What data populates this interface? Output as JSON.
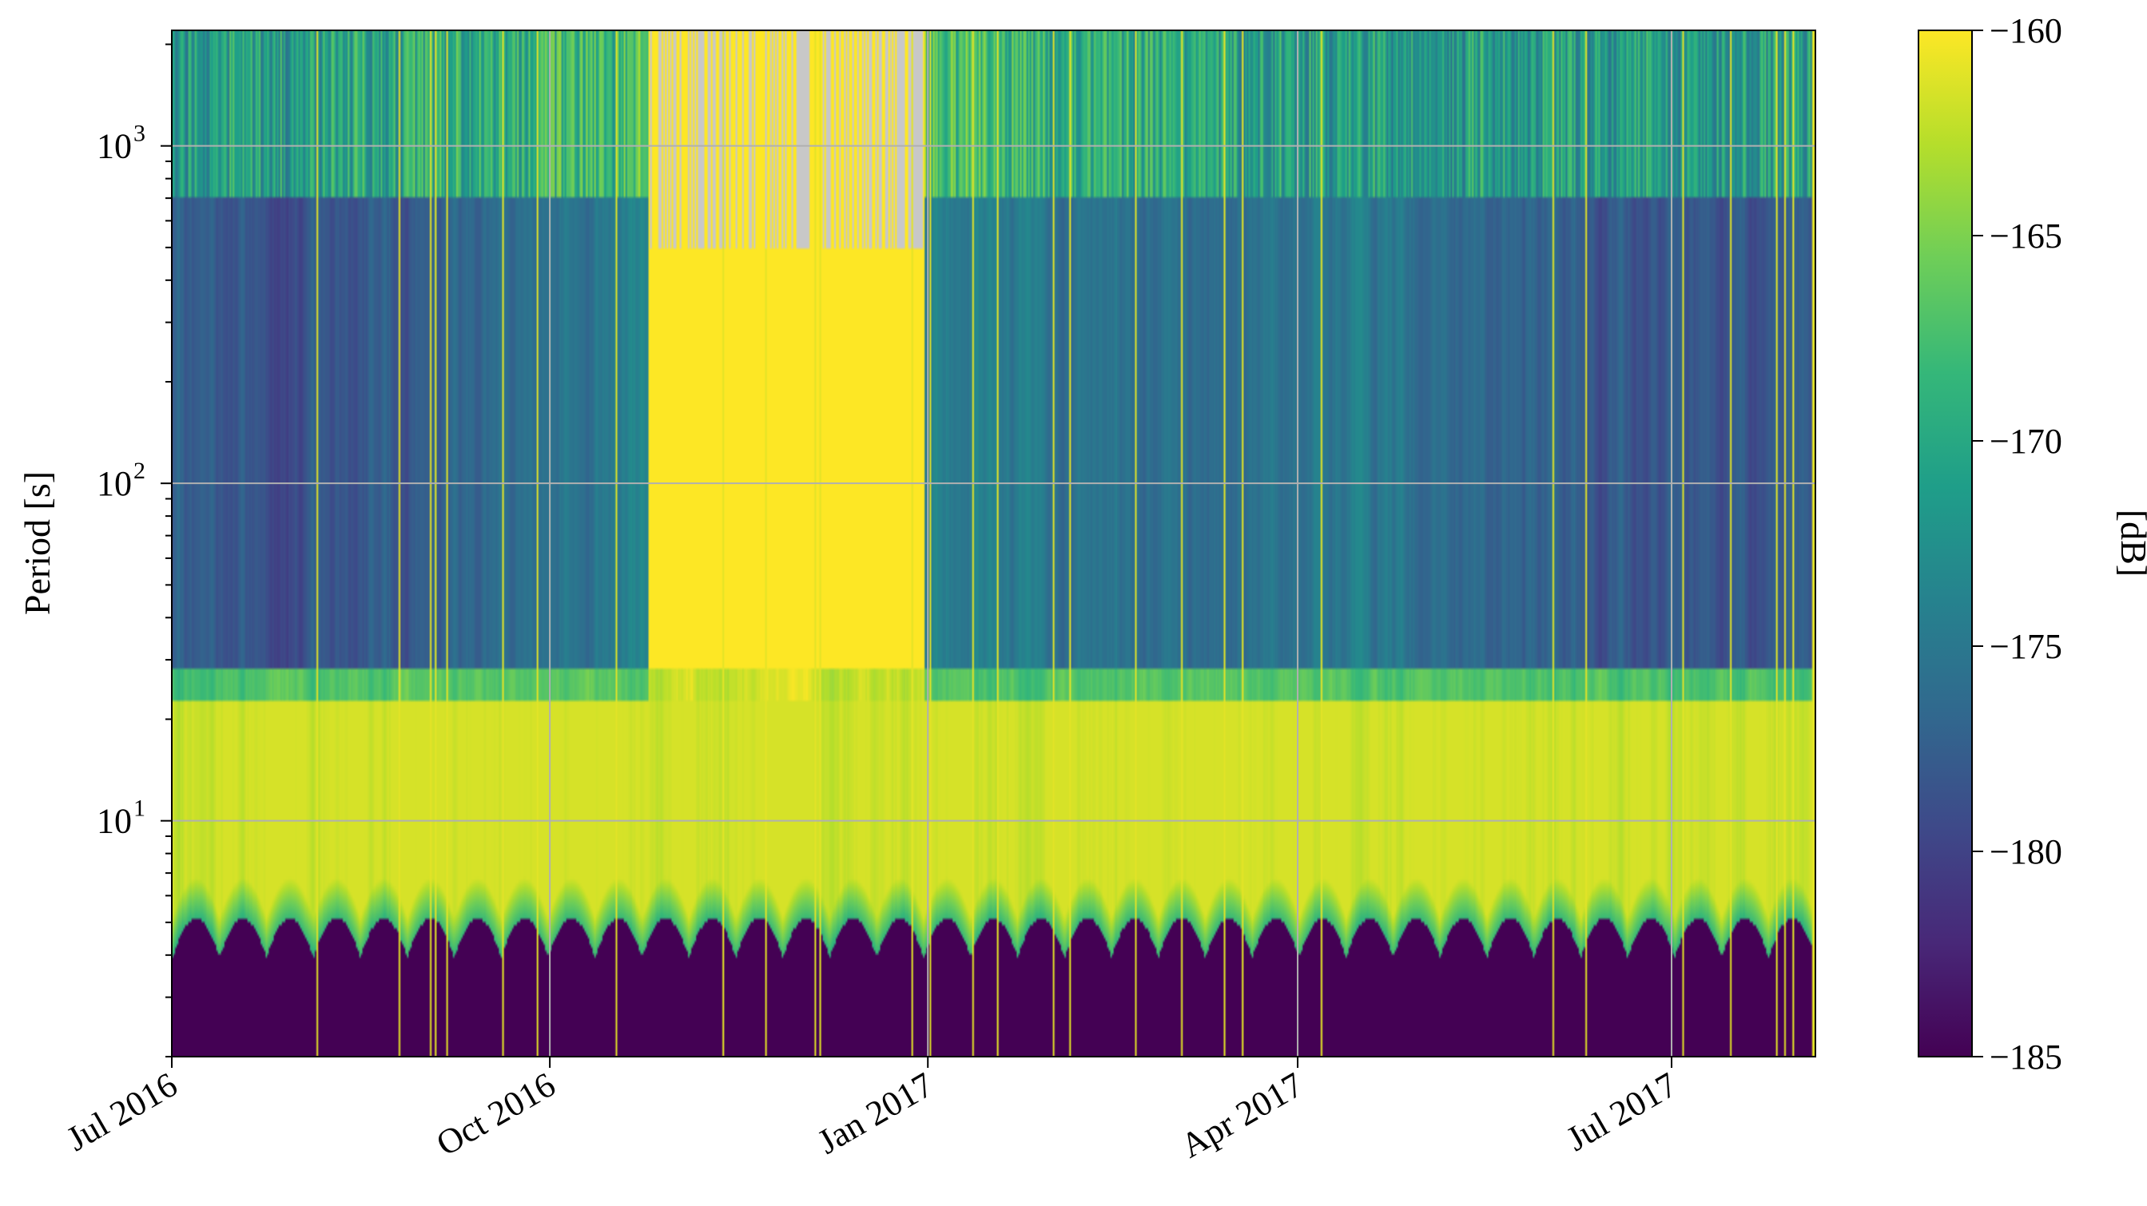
{
  "chart_data": {
    "type": "heatmap",
    "title": "",
    "xlabel": "",
    "ylabel": "Period [s]",
    "x_axis": {
      "kind": "date",
      "range": [
        "2016-07-01",
        "2017-08-05"
      ],
      "ticks": [
        {
          "date": "2016-07-01",
          "label": "Jul 2016"
        },
        {
          "date": "2016-10-01",
          "label": "Oct 2016"
        },
        {
          "date": "2017-01-01",
          "label": "Jan 2017"
        },
        {
          "date": "2017-04-01",
          "label": "Apr 2017"
        },
        {
          "date": "2017-07-01",
          "label": "Jul 2017"
        }
      ]
    },
    "y_axis": {
      "scale": "log",
      "range": [
        2,
        2200
      ],
      "ticks": [
        {
          "value": 10,
          "base": "10",
          "exp": "1"
        },
        {
          "value": 100,
          "base": "10",
          "exp": "2"
        },
        {
          "value": 1000,
          "base": "10",
          "exp": "3"
        }
      ]
    },
    "grid": true,
    "colorbar": {
      "label": "[dB]",
      "colormap": "viridis",
      "range": [
        -185,
        -160
      ],
      "ticks": [
        {
          "value": -160,
          "label": "−160"
        },
        {
          "value": -165,
          "label": "−165"
        },
        {
          "value": -170,
          "label": "−170"
        },
        {
          "value": -175,
          "label": "−175"
        },
        {
          "value": -180,
          "label": "−180"
        },
        {
          "value": -185,
          "label": "−185"
        }
      ]
    },
    "series": [
      {
        "period_band": "below 4 s",
        "typical_db": -185
      },
      {
        "period_band": "5–20 s",
        "typical_db": -161
      },
      {
        "period_band": "30–700 s",
        "typical_db": -180
      },
      {
        "period_band": "above 700 s",
        "typical_db": -172
      }
    ],
    "features": {
      "energetic_window": [
        "2016-10-25",
        "2016-12-31"
      ],
      "no_data_color": "#c8c8c8"
    },
    "colors": {
      "viridis_stops": [
        "#440154",
        "#482878",
        "#3e4989",
        "#31688e",
        "#26828e",
        "#1f9e89",
        "#35b779",
        "#6ece58",
        "#b5de2b",
        "#fde725"
      ],
      "grid": "#b0b0b0",
      "axes": "#000000"
    }
  }
}
